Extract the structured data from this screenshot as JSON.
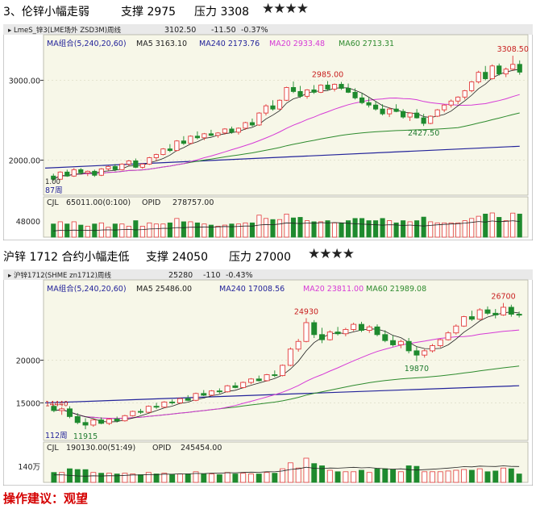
{
  "header1": {
    "title": "3、伦锌小幅走弱",
    "support": "支撑 2975",
    "resistance": "压力 3308",
    "stars": "★★★★"
  },
  "header2": {
    "title": "沪锌 1712 合约小幅走低",
    "support": "支撑 24050",
    "resistance": "压力 27000",
    "stars": "★★★★"
  },
  "advice": "操作建议：观望",
  "colors": {
    "up": "#e23b3b",
    "down": "#1e8a2e",
    "ma5": "#222222",
    "ma20": "#d63ad6",
    "ma60": "#2e8b2e",
    "ma240": "#23239a",
    "panel_bg": "#f7f7e8",
    "title_bar": "#e9e9e9"
  },
  "chart_data": [
    {
      "type": "candlestick",
      "title": "LmeS_锌3(LME场外 ZSD3M)周线",
      "last": "3102.50",
      "change": "-11.50",
      "change_pct": "-0.37%",
      "ma_group": "MA组合(5,240,20,60)",
      "ma": {
        "ma5": "MA5 3163.10",
        "ma240": "MA240 2173.76",
        "ma20": "MA20 2933.48",
        "ma60": "MA60 2713.31"
      },
      "annotations": {
        "high1": "2985.00",
        "low1": "2427.50",
        "high2": "3308.50"
      },
      "y_ticks": [
        "3000.00",
        "2000.00"
      ],
      "ylim": [
        1560,
        3400
      ],
      "period_label": "87周",
      "bottom_cut_label": "1.00",
      "ohlc": [
        [
          1800,
          1830,
          1740,
          1760
        ],
        [
          1760,
          1860,
          1750,
          1850
        ],
        [
          1850,
          1880,
          1790,
          1800
        ],
        [
          1800,
          1900,
          1790,
          1880
        ],
        [
          1880,
          1900,
          1820,
          1840
        ],
        [
          1840,
          1870,
          1800,
          1860
        ],
        [
          1860,
          1880,
          1790,
          1810
        ],
        [
          1810,
          1900,
          1800,
          1890
        ],
        [
          1890,
          1930,
          1870,
          1920
        ],
        [
          1920,
          1950,
          1860,
          1880
        ],
        [
          1880,
          1960,
          1870,
          1950
        ],
        [
          1950,
          2000,
          1930,
          1990
        ],
        [
          1990,
          2020,
          1900,
          1910
        ],
        [
          1910,
          1960,
          1890,
          1950
        ],
        [
          1950,
          2040,
          1940,
          2030
        ],
        [
          2030,
          2080,
          1990,
          2070
        ],
        [
          2070,
          2150,
          2060,
          2140
        ],
        [
          2140,
          2200,
          2100,
          2120
        ],
        [
          2120,
          2250,
          2110,
          2240
        ],
        [
          2240,
          2300,
          2190,
          2210
        ],
        [
          2210,
          2310,
          2200,
          2300
        ],
        [
          2300,
          2360,
          2260,
          2280
        ],
        [
          2280,
          2340,
          2250,
          2330
        ],
        [
          2330,
          2380,
          2300,
          2310
        ],
        [
          2310,
          2350,
          2280,
          2340
        ],
        [
          2340,
          2400,
          2320,
          2390
        ],
        [
          2390,
          2420,
          2330,
          2350
        ],
        [
          2350,
          2410,
          2320,
          2400
        ],
        [
          2400,
          2480,
          2380,
          2470
        ],
        [
          2470,
          2520,
          2420,
          2440
        ],
        [
          2440,
          2600,
          2430,
          2590
        ],
        [
          2590,
          2700,
          2560,
          2680
        ],
        [
          2680,
          2750,
          2620,
          2640
        ],
        [
          2640,
          2760,
          2630,
          2750
        ],
        [
          2750,
          2920,
          2740,
          2910
        ],
        [
          2910,
          2985,
          2840,
          2860
        ],
        [
          2860,
          2930,
          2780,
          2800
        ],
        [
          2800,
          2890,
          2770,
          2880
        ],
        [
          2880,
          2940,
          2830,
          2850
        ],
        [
          2850,
          2950,
          2840,
          2940
        ],
        [
          2940,
          2990,
          2870,
          2890
        ],
        [
          2890,
          2960,
          2860,
          2950
        ],
        [
          2950,
          2980,
          2880,
          2900
        ],
        [
          2900,
          2960,
          2840,
          2850
        ],
        [
          2850,
          2900,
          2760,
          2780
        ],
        [
          2780,
          2840,
          2700,
          2720
        ],
        [
          2720,
          2780,
          2660,
          2690
        ],
        [
          2690,
          2740,
          2620,
          2640
        ],
        [
          2640,
          2700,
          2560,
          2580
        ],
        [
          2580,
          2660,
          2540,
          2640
        ],
        [
          2640,
          2700,
          2600,
          2610
        ],
        [
          2610,
          2640,
          2520,
          2540
        ],
        [
          2540,
          2600,
          2490,
          2590
        ],
        [
          2590,
          2640,
          2520,
          2530
        ],
        [
          2530,
          2580,
          2427.5,
          2460
        ],
        [
          2460,
          2560,
          2450,
          2550
        ],
        [
          2550,
          2640,
          2540,
          2630
        ],
        [
          2630,
          2700,
          2600,
          2690
        ],
        [
          2690,
          2760,
          2660,
          2740
        ],
        [
          2740,
          2800,
          2700,
          2790
        ],
        [
          2790,
          2880,
          2760,
          2870
        ],
        [
          2870,
          2990,
          2850,
          2980
        ],
        [
          2980,
          3120,
          2960,
          3100
        ],
        [
          3100,
          3180,
          3000,
          3020
        ],
        [
          3020,
          3200,
          3010,
          3180
        ],
        [
          3180,
          3210,
          3060,
          3080
        ],
        [
          3080,
          3160,
          3040,
          3140
        ],
        [
          3140,
          3308.5,
          3120,
          3200
        ],
        [
          3200,
          3250,
          3070,
          3102.5
        ]
      ],
      "volume_title": "CJL",
      "volume_value": "65011.00(0:100)",
      "opid_label": "OPID",
      "opid_value": "278757.00",
      "volume_tick": "48000"
    },
    {
      "type": "candlestick",
      "title": "沪锌1712(SHME zn1712)周线",
      "last": "25280",
      "change": "-110",
      "change_pct": "-0.43%",
      "ma_group": "MA组合(5,240,20,60)",
      "ma": {
        "ma5": "MA5 25486.00",
        "ma240": "MA240 17008.56",
        "ma20": "MA20 23811.00",
        "ma60": "MA60 21989.08"
      },
      "annotations": {
        "high1": "24930",
        "low1": "19870",
        "high2": "26700",
        "low0": "11915",
        "left_label": "14440"
      },
      "y_ticks": [
        "20000",
        "15000"
      ],
      "ylim": [
        10600,
        27800
      ],
      "period_label": "112周",
      "ohlc": [
        [
          14600,
          14800,
          13900,
          14100
        ],
        [
          14100,
          14500,
          13600,
          14300
        ],
        [
          14300,
          14600,
          13200,
          13400
        ],
        [
          13400,
          13800,
          12500,
          12700
        ],
        [
          12700,
          13200,
          11915,
          12400
        ],
        [
          12400,
          13100,
          12200,
          13000
        ],
        [
          13000,
          13300,
          12500,
          12600
        ],
        [
          12600,
          13200,
          12400,
          13100
        ],
        [
          13100,
          13400,
          12700,
          12900
        ],
        [
          12900,
          13600,
          12800,
          13500
        ],
        [
          13500,
          14100,
          13400,
          14000
        ],
        [
          14000,
          14300,
          13700,
          13900
        ],
        [
          13900,
          14700,
          13800,
          14600
        ],
        [
          14600,
          15000,
          14300,
          14500
        ],
        [
          14500,
          15200,
          14400,
          15100
        ],
        [
          15100,
          15400,
          14800,
          15000
        ],
        [
          15000,
          15600,
          14900,
          15500
        ],
        [
          15500,
          15900,
          15200,
          15300
        ],
        [
          15300,
          16200,
          15200,
          16100
        ],
        [
          16100,
          16500,
          15800,
          15900
        ],
        [
          15900,
          16500,
          15800,
          16400
        ],
        [
          16400,
          16700,
          16100,
          16300
        ],
        [
          16300,
          17100,
          16200,
          17000
        ],
        [
          17000,
          17400,
          16700,
          16800
        ],
        [
          16800,
          17500,
          16700,
          17400
        ],
        [
          17400,
          17900,
          17200,
          17800
        ],
        [
          17800,
          18200,
          17500,
          17600
        ],
        [
          17600,
          18400,
          17500,
          18300
        ],
        [
          18300,
          18800,
          18000,
          18200
        ],
        [
          18200,
          19500,
          18100,
          19400
        ],
        [
          19400,
          21500,
          19300,
          21300
        ],
        [
          21300,
          22500,
          21000,
          22200
        ],
        [
          22200,
          24930,
          22100,
          24400
        ],
        [
          24400,
          24700,
          22600,
          23000
        ],
        [
          23000,
          23800,
          22000,
          22400
        ],
        [
          22400,
          23500,
          22300,
          23300
        ],
        [
          23300,
          23900,
          22900,
          23100
        ],
        [
          23100,
          23800,
          22800,
          23600
        ],
        [
          23600,
          24400,
          23400,
          24200
        ],
        [
          24200,
          24500,
          23300,
          23500
        ],
        [
          23500,
          24100,
          23200,
          23900
        ],
        [
          23900,
          24200,
          22800,
          23000
        ],
        [
          23000,
          23500,
          22100,
          22300
        ],
        [
          22300,
          22900,
          21600,
          21800
        ],
        [
          21800,
          22400,
          21400,
          22200
        ],
        [
          22200,
          22600,
          20800,
          21100
        ],
        [
          21100,
          21600,
          19870,
          20600
        ],
        [
          20600,
          21300,
          20300,
          21100
        ],
        [
          21100,
          21900,
          20900,
          21700
        ],
        [
          21700,
          22500,
          21500,
          22400
        ],
        [
          22400,
          23400,
          22300,
          23200
        ],
        [
          23200,
          24200,
          23000,
          24000
        ],
        [
          24000,
          25200,
          23900,
          25100
        ],
        [
          25100,
          25800,
          24600,
          24800
        ],
        [
          24800,
          26100,
          24700,
          25900
        ],
        [
          25900,
          26300,
          25300,
          25500
        ],
        [
          25500,
          26000,
          24900,
          25300
        ],
        [
          25300,
          26700,
          25200,
          26200
        ],
        [
          26200,
          26500,
          25100,
          25390
        ],
        [
          25390,
          25700,
          25000,
          25280
        ]
      ],
      "volume_title": "CJL",
      "volume_value": "190130.00(51:49)",
      "opid_label": "OPID",
      "opid_value": "245454.00",
      "volume_tick": "140万"
    }
  ]
}
